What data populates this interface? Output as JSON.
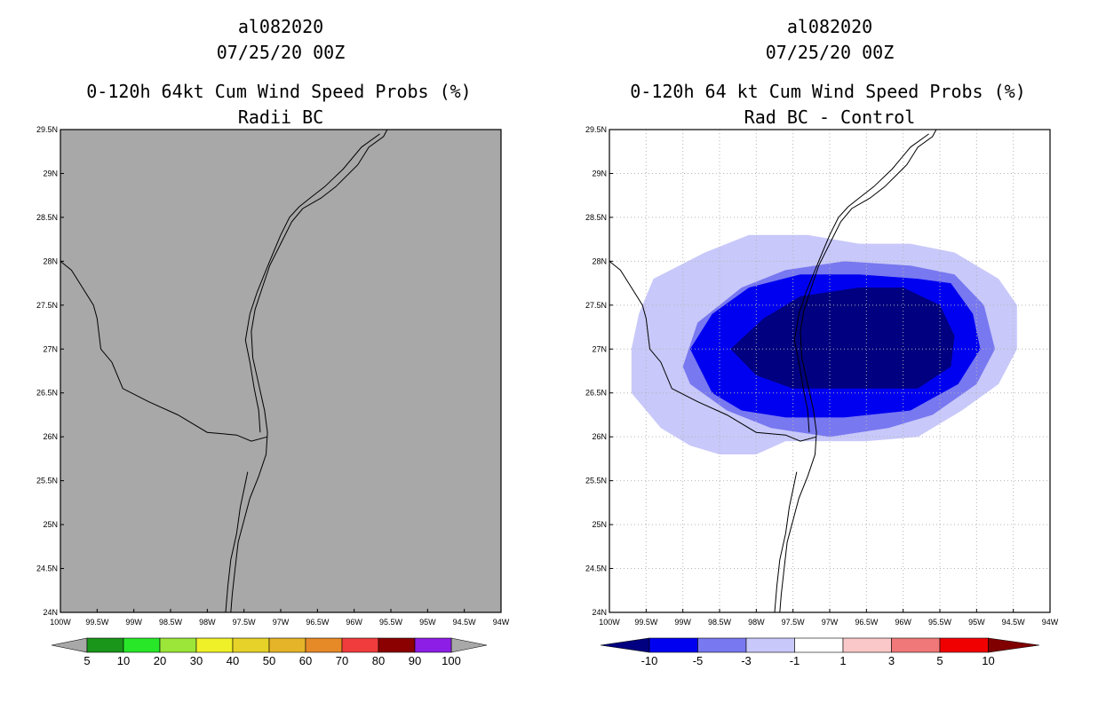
{
  "chart_data": [
    {
      "type": "heatmap",
      "storm_id": "al082020",
      "time": "07/25/20 00Z",
      "title": "0-120h 64kt Cum Wind Speed Probs (%)",
      "subtitle": "Radii BC",
      "xlabel": "",
      "ylabel": "",
      "xlim": [
        -100,
        -94
      ],
      "ylim": [
        24,
        29.5
      ],
      "x_ticks": [
        "100W",
        "99.5W",
        "99W",
        "98.5W",
        "98W",
        "97.5W",
        "97W",
        "96.5W",
        "96W",
        "95.5W",
        "95W",
        "94.5W",
        "94W"
      ],
      "y_ticks": [
        "24N",
        "24.5N",
        "25N",
        "25.5N",
        "26N",
        "26.5N",
        "27N",
        "27.5N",
        "28N",
        "28.5N",
        "29N",
        "29.5N"
      ],
      "grid": false,
      "field": "no probability above 5% shown (uniform gray field)",
      "background_color": "#a8a8a8",
      "colorbar": {
        "labels": [
          "5",
          "10",
          "20",
          "30",
          "40",
          "50",
          "60",
          "70",
          "80",
          "90",
          "100"
        ],
        "colors": [
          "#1a961a",
          "#28e628",
          "#9be639",
          "#f0f028",
          "#e6d228",
          "#e6b428",
          "#e68a28",
          "#f03c3c",
          "#8b0000",
          "#8c1ee6"
        ],
        "under_color": "#a8a8a8",
        "over_color": "#a8a8a8"
      }
    },
    {
      "type": "heatmap",
      "storm_id": "al082020",
      "time": "07/25/20 00Z",
      "title": "0-120h 64 kt Cum Wind Speed Probs (%)",
      "subtitle": "Rad BC - Control",
      "xlabel": "",
      "ylabel": "",
      "xlim": [
        -100,
        -94
      ],
      "ylim": [
        24,
        29.5
      ],
      "x_ticks": [
        "100W",
        "99.5W",
        "99W",
        "98.5W",
        "98W",
        "97.5W",
        "97W",
        "96.5W",
        "96W",
        "95.5W",
        "95W",
        "94.5W",
        "94W"
      ],
      "y_ticks": [
        "24N",
        "24.5N",
        "25N",
        "25.5N",
        "26N",
        "26.5N",
        "27N",
        "27.5N",
        "28N",
        "28.5N",
        "29N",
        "29.5N"
      ],
      "grid": true,
      "contours": [
        {
          "level": "-1 to -3",
          "color": "#c8c8fa",
          "polygon": [
            [
              -99.6,
              27.4
            ],
            [
              -99.4,
              27.8
            ],
            [
              -98.7,
              28.1
            ],
            [
              -98.1,
              28.3
            ],
            [
              -97.3,
              28.3
            ],
            [
              -96.6,
              28.2
            ],
            [
              -95.9,
              28.2
            ],
            [
              -95.3,
              28.1
            ],
            [
              -94.7,
              27.8
            ],
            [
              -94.45,
              27.5
            ],
            [
              -94.45,
              27.0
            ],
            [
              -94.7,
              26.6
            ],
            [
              -95.2,
              26.3
            ],
            [
              -95.8,
              26.0
            ],
            [
              -96.5,
              25.95
            ],
            [
              -97.1,
              25.95
            ],
            [
              -97.6,
              25.95
            ],
            [
              -98.0,
              25.8
            ],
            [
              -98.5,
              25.8
            ],
            [
              -98.9,
              25.9
            ],
            [
              -99.3,
              26.1
            ],
            [
              -99.7,
              26.5
            ],
            [
              -99.7,
              27.0
            ]
          ]
        },
        {
          "level": "-3 to -5",
          "color": "#7878f0",
          "polygon": [
            [
              -99.0,
              26.8
            ],
            [
              -98.8,
              27.3
            ],
            [
              -98.2,
              27.7
            ],
            [
              -97.6,
              27.9
            ],
            [
              -96.8,
              28.0
            ],
            [
              -95.9,
              27.95
            ],
            [
              -95.3,
              27.85
            ],
            [
              -94.9,
              27.5
            ],
            [
              -94.75,
              27.0
            ],
            [
              -95.0,
              26.6
            ],
            [
              -95.6,
              26.25
            ],
            [
              -96.2,
              26.1
            ],
            [
              -97.0,
              26.0
            ],
            [
              -97.8,
              26.1
            ],
            [
              -98.4,
              26.3
            ],
            [
              -98.9,
              26.6
            ]
          ]
        },
        {
          "level": "-5 to -10",
          "color": "#0000f0",
          "polygon": [
            [
              -98.9,
              27.0
            ],
            [
              -98.6,
              27.4
            ],
            [
              -98.1,
              27.7
            ],
            [
              -97.4,
              27.85
            ],
            [
              -96.6,
              27.85
            ],
            [
              -95.8,
              27.8
            ],
            [
              -95.35,
              27.75
            ],
            [
              -95.05,
              27.4
            ],
            [
              -94.95,
              27.0
            ],
            [
              -95.25,
              26.6
            ],
            [
              -95.9,
              26.3
            ],
            [
              -96.8,
              26.22
            ],
            [
              -97.6,
              26.22
            ],
            [
              -98.2,
              26.3
            ],
            [
              -98.6,
              26.5
            ]
          ]
        },
        {
          "level": "< -10",
          "color": "#000080",
          "polygon": [
            [
              -98.35,
              27.0
            ],
            [
              -97.9,
              27.35
            ],
            [
              -97.4,
              27.6
            ],
            [
              -96.6,
              27.7
            ],
            [
              -96.0,
              27.7
            ],
            [
              -95.5,
              27.5
            ],
            [
              -95.3,
              27.15
            ],
            [
              -95.35,
              26.8
            ],
            [
              -95.8,
              26.55
            ],
            [
              -96.5,
              26.55
            ],
            [
              -97.5,
              26.55
            ],
            [
              -98.0,
              26.7
            ]
          ]
        }
      ],
      "colorbar": {
        "labels": [
          "-10",
          "-5",
          "-3",
          "-1",
          "1",
          "3",
          "5",
          "10"
        ],
        "colors": [
          "#000080",
          "#0000f0",
          "#7878f0",
          "#c8c8fa",
          "#ffffff",
          "#fac8c8",
          "#f07878",
          "#f00000",
          "#800000"
        ],
        "under_color": "#000080",
        "over_color": "#800000"
      }
    }
  ]
}
